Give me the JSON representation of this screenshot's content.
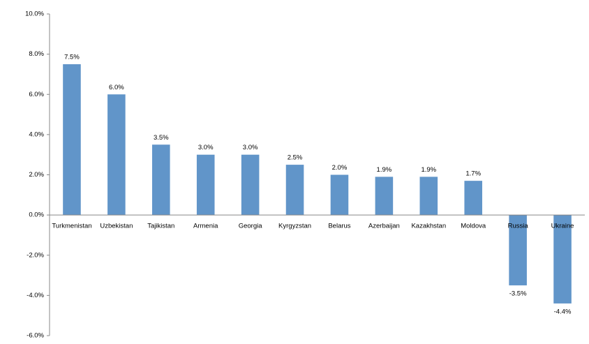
{
  "chart_data": {
    "type": "bar",
    "categories": [
      "Turkmenistan",
      "Uzbekistan",
      "Tajikistan",
      "Armenia",
      "Georgia",
      "Kyrgyzstan",
      "Belarus",
      "Azerbaijan",
      "Kazakhstan",
      "Moldova",
      "Russia",
      "Ukraine"
    ],
    "values": [
      7.5,
      6.0,
      3.5,
      3.0,
      3.0,
      2.5,
      2.0,
      1.9,
      1.9,
      1.7,
      -3.5,
      -4.4
    ],
    "value_labels": [
      "7.5%",
      "6.0%",
      "3.5%",
      "3.0%",
      "3.0%",
      "2.5%",
      "2.0%",
      "1.9%",
      "1.9%",
      "1.7%",
      "-3.5%",
      "-4.4%"
    ],
    "color": "#6195c9",
    "ylim": [
      -6,
      10
    ],
    "yticks": [
      {
        "value": -6,
        "label": "-6.0%"
      },
      {
        "value": -4,
        "label": "-4.0%"
      },
      {
        "value": -2,
        "label": "-2.0%"
      },
      {
        "value": 0,
        "label": "0.0%"
      },
      {
        "value": 2,
        "label": "2.0%"
      },
      {
        "value": 4,
        "label": "4.0%"
      },
      {
        "value": 6,
        "label": "6.0%"
      },
      {
        "value": 8,
        "label": "8.0%"
      },
      {
        "value": 10,
        "label": "10.0%"
      }
    ],
    "grid": false
  }
}
